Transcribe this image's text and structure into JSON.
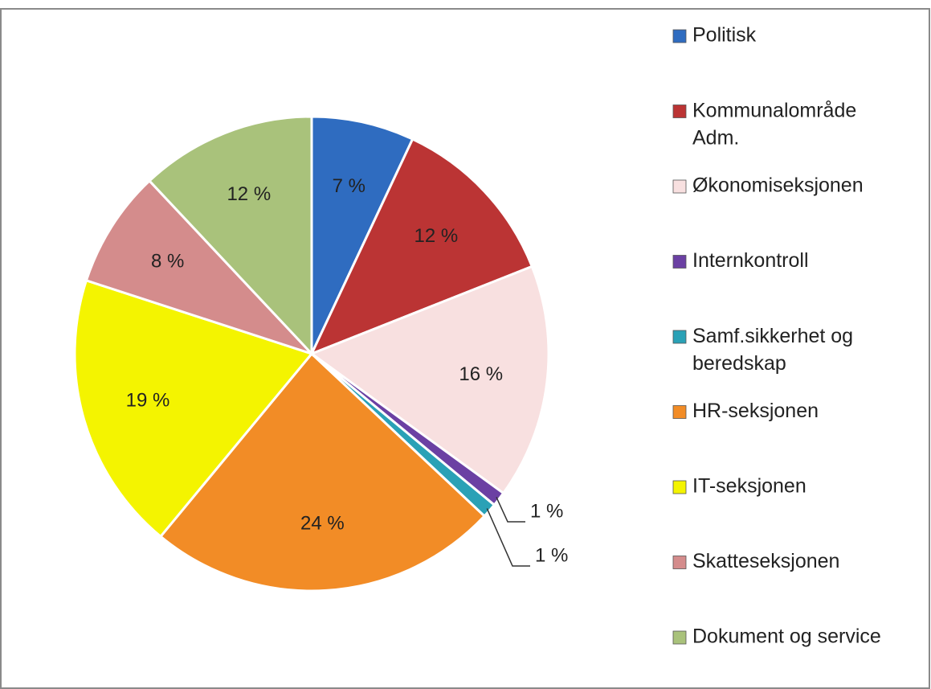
{
  "chart_data": {
    "type": "pie",
    "categories": [
      "Politisk",
      "Kommunalområde Adm.",
      "Økonomiseksjonen",
      "Internkontroll",
      "Samf.sikkerhet og beredskap",
      "HR-seksjonen",
      "IT-seksjonen",
      "Skatteseksjonen",
      "Dokument og service"
    ],
    "values": [
      7,
      12,
      16,
      1,
      1,
      24,
      19,
      8,
      12
    ],
    "value_labels": [
      "7 %",
      "12 %",
      "16 %",
      "1 %",
      "1 %",
      "24 %",
      "19 %",
      "8 %",
      "12 %"
    ],
    "colors": [
      "#2f6cc0",
      "#bb3434",
      "#f8e0e0",
      "#6b40a3",
      "#2aa1b6",
      "#f28c26",
      "#f4f400",
      "#d48c8c",
      "#a9c27b"
    ],
    "legend": "right"
  }
}
